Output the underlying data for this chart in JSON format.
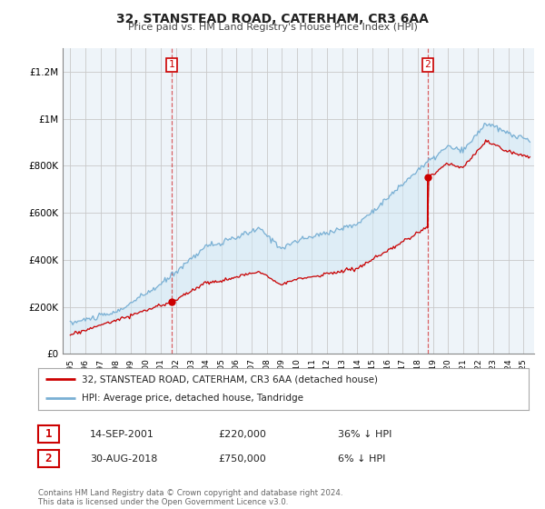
{
  "title": "32, STANSTEAD ROAD, CATERHAM, CR3 6AA",
  "subtitle": "Price paid vs. HM Land Registry's House Price Index (HPI)",
  "ylim": [
    0,
    1300000
  ],
  "yticks": [
    0,
    200000,
    400000,
    600000,
    800000,
    1000000,
    1200000
  ],
  "ytick_labels": [
    "£0",
    "£200K",
    "£400K",
    "£600K",
    "£800K",
    "£1M",
    "£1.2M"
  ],
  "legend_line1": "32, STANSTEAD ROAD, CATERHAM, CR3 6AA (detached house)",
  "legend_line2": "HPI: Average price, detached house, Tandridge",
  "annotation1_label": "1",
  "annotation1_date": "14-SEP-2001",
  "annotation1_price": "£220,000",
  "annotation1_hpi": "36% ↓ HPI",
  "annotation2_label": "2",
  "annotation2_date": "30-AUG-2018",
  "annotation2_price": "£750,000",
  "annotation2_hpi": "6% ↓ HPI",
  "footer": "Contains HM Land Registry data © Crown copyright and database right 2024.\nThis data is licensed under the Open Government Licence v3.0.",
  "line_color_red": "#cc0000",
  "line_color_blue": "#7ab0d4",
  "fill_color_blue": "#d0e8f5",
  "background_chart": "#eef4f9",
  "background_main": "#ffffff",
  "grid_color": "#c8c8c8",
  "annotation_box_color": "#cc0000",
  "t1": 2001.71,
  "t2": 2018.66,
  "p1": 220000,
  "p2": 750000
}
